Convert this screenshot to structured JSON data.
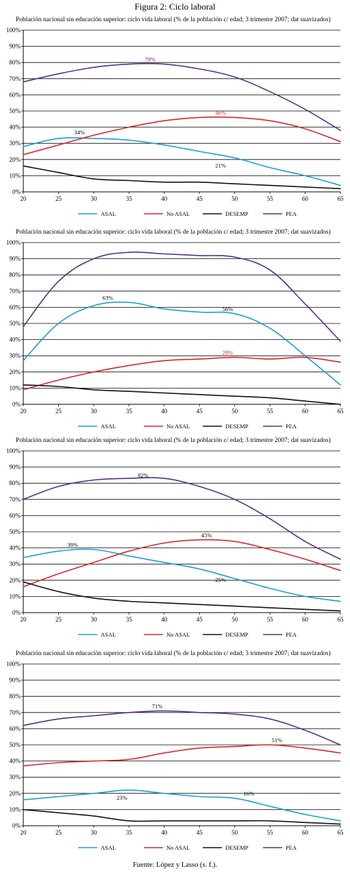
{
  "figure_title": "Figura 2: Ciclo laboral",
  "source": "Fuente: López y Lasso (s. f.).",
  "colors": {
    "ASAL": "#1a9ed8",
    "No ASAL": "#d6262b",
    "DESEMP": "#111111",
    "PEA": "#5b2d83"
  },
  "chart_data": [
    {
      "type": "line",
      "title": "Población nacional sin educación superior: ciclo vida laboral (% de la población c/ edad; 3 trimestre 2007; dat suavizados)",
      "xlabel": "",
      "ylabel": "",
      "xlim": [
        20,
        65
      ],
      "ylim": [
        0,
        100
      ],
      "x_ticks": [
        "20",
        "25",
        "30",
        "35",
        "40",
        "45",
        "50",
        "55",
        "60",
        "65"
      ],
      "y_ticks": [
        "0%",
        "10%",
        "20%",
        "30%",
        "40%",
        "50%",
        "60%",
        "70%",
        "80%",
        "90%",
        "100%"
      ],
      "grid": true,
      "legend": "bottom",
      "x": [
        20,
        25,
        30,
        35,
        40,
        45,
        50,
        55,
        60,
        65
      ],
      "series": [
        {
          "name": "ASAL",
          "values": [
            28,
            33,
            33,
            32,
            29,
            25,
            21,
            15,
            10,
            4
          ]
        },
        {
          "name": "No ASAL",
          "values": [
            23,
            29,
            35,
            40,
            44,
            46,
            46,
            44,
            39,
            31
          ]
        },
        {
          "name": "DESEMP",
          "values": [
            16,
            12,
            8,
            7,
            6,
            6,
            5,
            4,
            3,
            2
          ]
        },
        {
          "name": "PEA",
          "values": [
            68,
            73,
            77,
            79,
            79,
            76,
            71,
            62,
            51,
            38
          ]
        }
      ],
      "annotations": [
        {
          "x": 28,
          "y": 34,
          "text": "34%",
          "color": "#000000",
          "pos": "above"
        },
        {
          "x": 48,
          "y": 46,
          "text": "46%",
          "color": "#d6262b",
          "pos": "above"
        },
        {
          "x": 48,
          "y": 21,
          "text": "21%",
          "color": "#000000",
          "pos": "below"
        },
        {
          "x": 38,
          "y": 79,
          "text": "79%",
          "color": "#5b2d83",
          "pos": "above"
        }
      ]
    },
    {
      "type": "line",
      "title": "Población nacional sin educación superior: ciclo vida laboral (% de la población c/ edad; 3 trimestre 2007; dat suavizados)",
      "xlabel": "",
      "ylabel": "",
      "xlim": [
        20,
        65
      ],
      "ylim": [
        0,
        100
      ],
      "x_ticks": [
        "20",
        "25",
        "30",
        "35",
        "40",
        "45",
        "50",
        "55",
        "60",
        "65"
      ],
      "y_ticks": [
        "0%",
        "10%",
        "20%",
        "30%",
        "40%",
        "50%",
        "60%",
        "70%",
        "80%",
        "90%",
        "100%"
      ],
      "grid": true,
      "legend": "bottom",
      "x": [
        20,
        25,
        30,
        35,
        40,
        45,
        50,
        55,
        60,
        65
      ],
      "series": [
        {
          "name": "ASAL",
          "values": [
            27,
            50,
            61,
            63,
            59,
            57,
            56,
            47,
            30,
            12
          ]
        },
        {
          "name": "No ASAL",
          "values": [
            9,
            15,
            20,
            24,
            27,
            28,
            29,
            28,
            29,
            26
          ]
        },
        {
          "name": "DESEMP",
          "values": [
            12,
            11,
            9,
            8,
            7,
            6,
            5,
            4,
            2,
            0
          ]
        },
        {
          "name": "PEA",
          "values": [
            48,
            76,
            90,
            94,
            93,
            92,
            91,
            83,
            62,
            39
          ]
        }
      ],
      "annotations": [
        {
          "x": 32,
          "y": 63,
          "text": "63%",
          "color": "#000000",
          "pos": "above"
        },
        {
          "x": 49,
          "y": 56,
          "text": "56%",
          "color": "#000000",
          "pos": "above"
        },
        {
          "x": 49,
          "y": 29,
          "text": "29%",
          "color": "#d6262b",
          "pos": "above"
        }
      ]
    },
    {
      "type": "line",
      "title": "Población nacional sin educación superior: ciclo vida laboral (% de la población c/ edad; 3 trimestre 2007; dat suavizados)",
      "xlabel": "",
      "ylabel": "",
      "xlim": [
        20,
        65
      ],
      "ylim": [
        0,
        100
      ],
      "x_ticks": [
        "20",
        "25",
        "30",
        "35",
        "40",
        "45",
        "50",
        "55",
        "60",
        "65"
      ],
      "y_ticks": [
        "0%",
        "10%",
        "20%",
        "30%",
        "40%",
        "50%",
        "60%",
        "70%",
        "80%",
        "90%",
        "100%"
      ],
      "grid": true,
      "legend": "bottom",
      "x": [
        20,
        25,
        30,
        35,
        40,
        45,
        50,
        55,
        60,
        65
      ],
      "series": [
        {
          "name": "ASAL",
          "values": [
            34,
            38,
            39,
            35,
            31,
            27,
            21,
            15,
            10,
            7
          ]
        },
        {
          "name": "No ASAL",
          "values": [
            16,
            24,
            31,
            38,
            43,
            45,
            44,
            39,
            33,
            26
          ]
        },
        {
          "name": "DESEMP",
          "values": [
            19,
            13,
            9,
            7,
            6,
            5,
            4,
            3,
            2,
            1
          ]
        },
        {
          "name": "PEA",
          "values": [
            70,
            78,
            82,
            83,
            83,
            78,
            70,
            58,
            44,
            33
          ]
        }
      ],
      "annotations": [
        {
          "x": 27,
          "y": 39,
          "text": "39%",
          "color": "#000000",
          "pos": "above"
        },
        {
          "x": 46,
          "y": 45,
          "text": "45%",
          "color": "#000000",
          "pos": "above"
        },
        {
          "x": 48,
          "y": 25,
          "text": "25%",
          "color": "#000000",
          "pos": "below"
        },
        {
          "x": 37,
          "y": 82,
          "text": "82%",
          "color": "#000000",
          "pos": "above"
        }
      ]
    },
    {
      "type": "line",
      "title": "Población nacional sin educación superior: ciclo vida laboral (% de la población c/ edad; 3 trimestre 2007; dat suavizados)",
      "xlabel": "",
      "ylabel": "",
      "xlim": [
        20,
        65
      ],
      "ylim": [
        0,
        100
      ],
      "x_ticks": [
        "20",
        "25",
        "30",
        "35",
        "40",
        "45",
        "50",
        "55",
        "60",
        "65"
      ],
      "y_ticks": [
        "0%",
        "10%",
        "20%",
        "30%",
        "40%",
        "50%",
        "60%",
        "70%",
        "80%",
        "90%",
        "100%"
      ],
      "grid": true,
      "legend": "bottom",
      "x": [
        20,
        25,
        30,
        35,
        40,
        45,
        50,
        55,
        60,
        65
      ],
      "series": [
        {
          "name": "ASAL",
          "values": [
            16,
            18,
            20,
            22,
            20,
            18,
            17,
            12,
            7,
            3
          ]
        },
        {
          "name": "No ASAL",
          "values": [
            37,
            39,
            40,
            41,
            45,
            48,
            49,
            50,
            48,
            45
          ]
        },
        {
          "name": "DESEMP",
          "values": [
            10,
            8,
            6,
            3,
            3,
            3,
            3,
            3,
            2,
            1
          ]
        },
        {
          "name": "PEA",
          "values": [
            62,
            66,
            68,
            70,
            71,
            70,
            69,
            66,
            59,
            50
          ]
        }
      ],
      "annotations": [
        {
          "x": 39,
          "y": 71,
          "text": "71%",
          "color": "#000000",
          "pos": "above"
        },
        {
          "x": 56,
          "y": 50,
          "text": "51%",
          "color": "#000000",
          "pos": "above"
        },
        {
          "x": 34,
          "y": 22,
          "text": "23%",
          "color": "#000000",
          "pos": "below"
        },
        {
          "x": 52,
          "y": 17,
          "text": "16%",
          "color": "#000000",
          "pos": "above"
        }
      ]
    }
  ]
}
